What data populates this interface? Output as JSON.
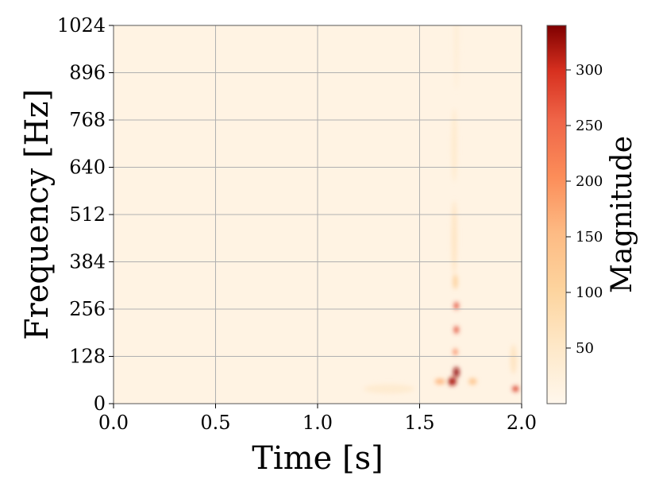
{
  "chart_data": {
    "type": "heatmap",
    "title": "",
    "xlabel": "Time [s]",
    "ylabel": "Frequency [Hz]",
    "xlim": [
      0.0,
      2.0
    ],
    "ylim": [
      0,
      1024
    ],
    "xticks": [
      0.0,
      0.5,
      1.0,
      1.5,
      2.0
    ],
    "xtick_labels": [
      "0.0",
      "0.5",
      "1.0",
      "1.5",
      "2.0"
    ],
    "yticks": [
      0,
      128,
      256,
      384,
      512,
      640,
      768,
      896,
      1024
    ],
    "ytick_labels": [
      "0",
      "128",
      "256",
      "384",
      "512",
      "640",
      "768",
      "896",
      "1024"
    ],
    "grid": true,
    "colormap": "OrRd",
    "colorbar": {
      "label": "Magnitude",
      "range": [
        0,
        340
      ],
      "ticks": [
        50,
        100,
        150,
        200,
        250,
        300
      ],
      "tick_labels": [
        "50",
        "100",
        "150",
        "200",
        "250",
        "300"
      ]
    },
    "features": [
      {
        "time": 1.68,
        "freq": 1000,
        "time_width": 0.025,
        "freq_height": 300,
        "magnitude": 30
      },
      {
        "time": 1.67,
        "freq": 700,
        "time_width": 0.025,
        "freq_height": 200,
        "magnitude": 45
      },
      {
        "time": 1.67,
        "freq": 450,
        "time_width": 0.025,
        "freq_height": 200,
        "magnitude": 60
      },
      {
        "time": 1.675,
        "freq": 330,
        "time_width": 0.022,
        "freq_height": 40,
        "magnitude": 110
      },
      {
        "time": 1.68,
        "freq": 265,
        "time_width": 0.022,
        "freq_height": 20,
        "magnitude": 280
      },
      {
        "time": 1.68,
        "freq": 200,
        "time_width": 0.022,
        "freq_height": 20,
        "magnitude": 280
      },
      {
        "time": 1.675,
        "freq": 140,
        "time_width": 0.02,
        "freq_height": 18,
        "magnitude": 220
      },
      {
        "time": 1.68,
        "freq": 85,
        "time_width": 0.028,
        "freq_height": 28,
        "magnitude": 330
      },
      {
        "time": 1.66,
        "freq": 60,
        "time_width": 0.04,
        "freq_height": 22,
        "magnitude": 320
      },
      {
        "time": 1.6,
        "freq": 60,
        "time_width": 0.05,
        "freq_height": 15,
        "magnitude": 160
      },
      {
        "time": 1.76,
        "freq": 60,
        "time_width": 0.04,
        "freq_height": 18,
        "magnitude": 130
      },
      {
        "time": 1.35,
        "freq": 40,
        "time_width": 0.25,
        "freq_height": 25,
        "magnitude": 40
      },
      {
        "time": 1.97,
        "freq": 40,
        "time_width": 0.03,
        "freq_height": 15,
        "magnitude": 300
      },
      {
        "time": 1.96,
        "freq": 120,
        "time_width": 0.03,
        "freq_height": 80,
        "magnitude": 60
      }
    ]
  }
}
